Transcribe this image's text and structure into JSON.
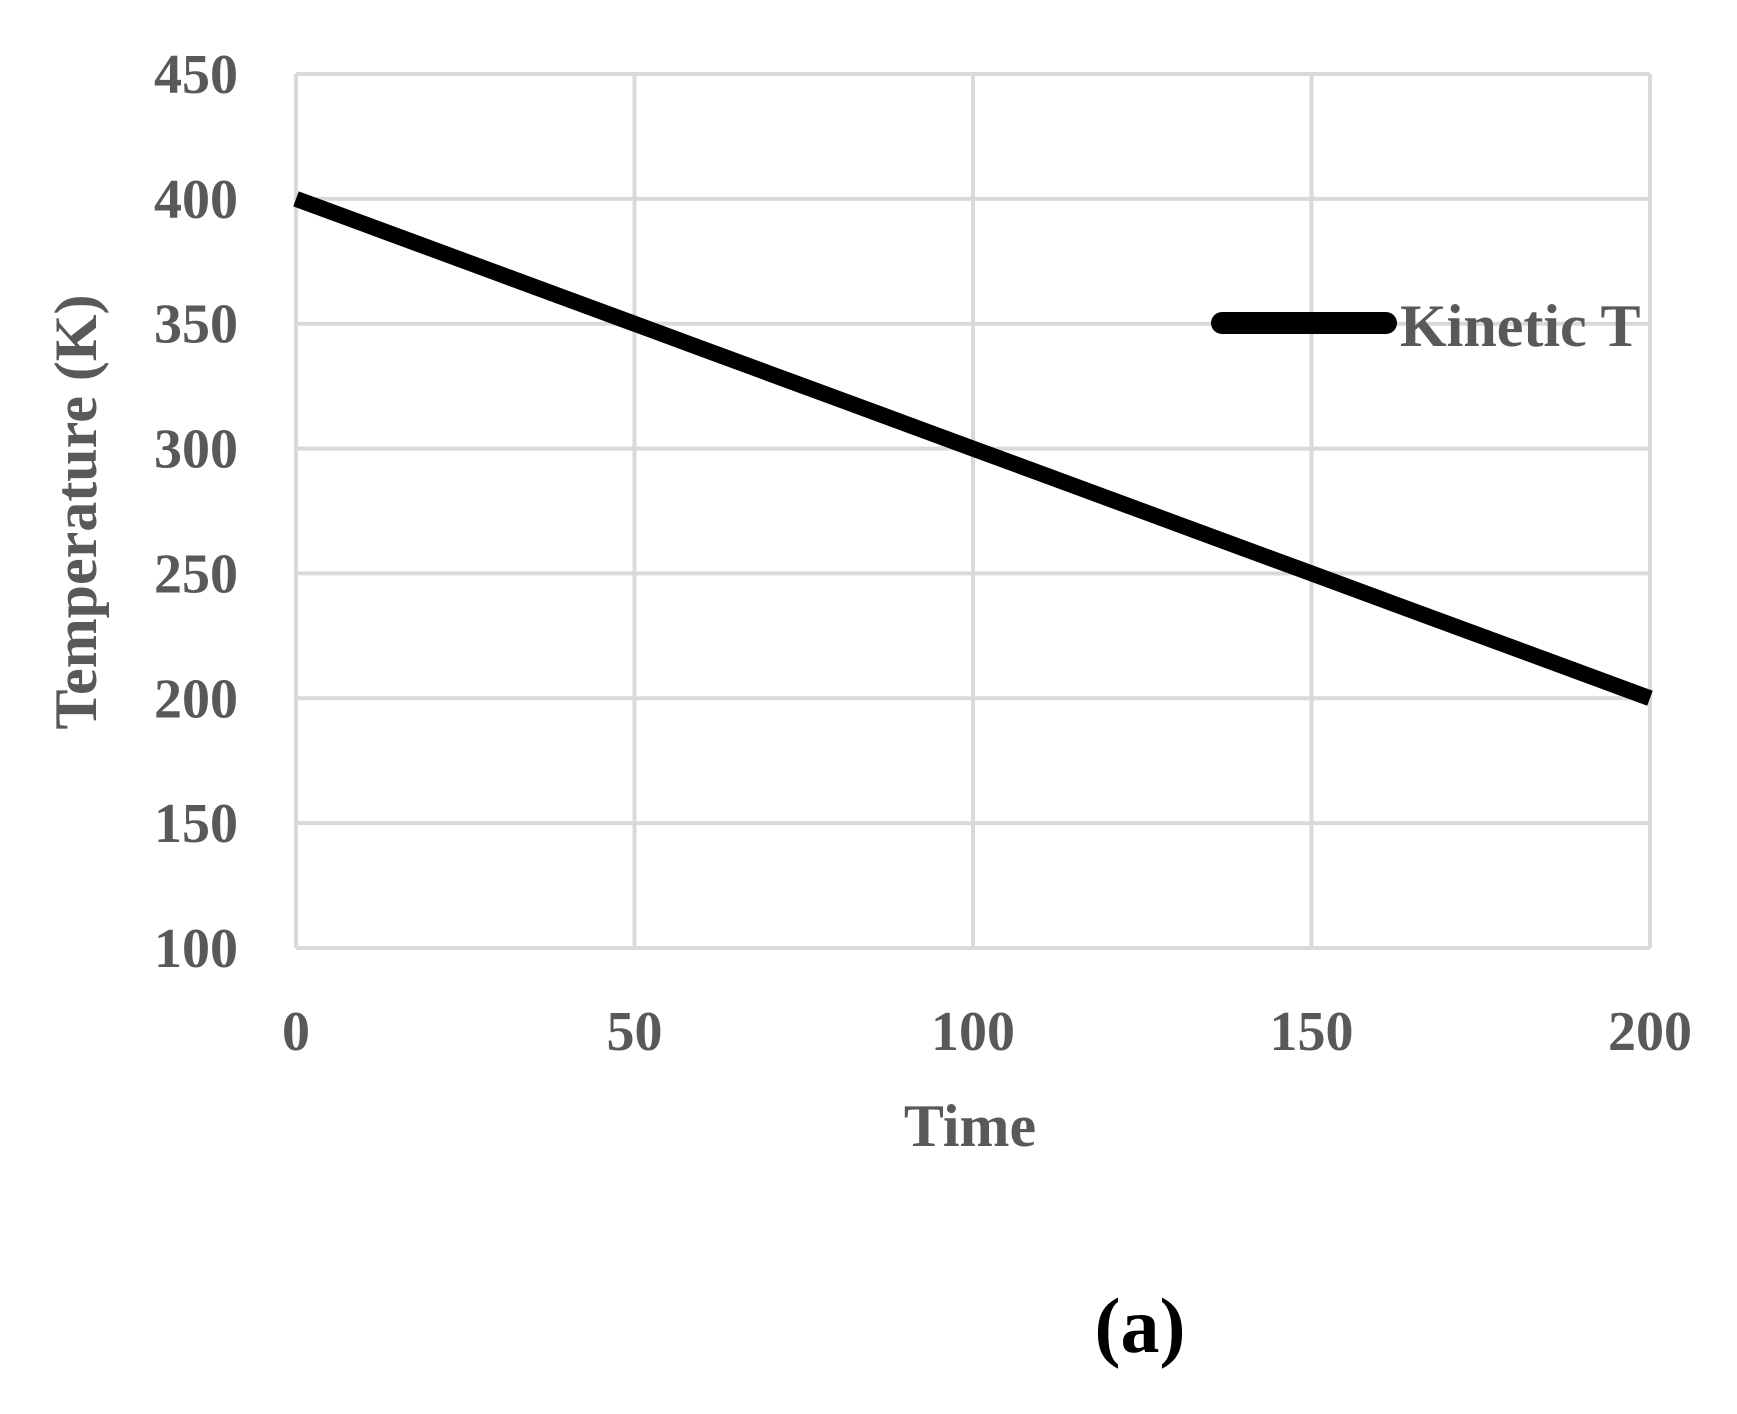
{
  "chart_data": {
    "type": "line",
    "title": "",
    "xlabel": "Time",
    "ylabel": "Temperature (K)",
    "xlim": [
      0,
      200
    ],
    "ylim": [
      100,
      450
    ],
    "x_ticks": [
      "0",
      "50",
      "100",
      "150",
      "200"
    ],
    "y_ticks": [
      "100",
      "150",
      "200",
      "250",
      "300",
      "350",
      "400",
      "450"
    ],
    "grid": true,
    "legend_position": "right",
    "series": [
      {
        "name": "Kinetic T",
        "color": "#000000",
        "x": [
          0,
          10,
          20,
          30,
          40,
          50,
          60,
          70,
          80,
          90,
          100,
          110,
          120,
          130,
          140,
          150,
          160,
          170,
          180,
          190,
          200
        ],
        "y": [
          400,
          390,
          380,
          370,
          360,
          350,
          340,
          330,
          320,
          310,
          300,
          290,
          280,
          270,
          260,
          250,
          240,
          230,
          220,
          210,
          200
        ]
      }
    ]
  },
  "panel_label": "(a)",
  "colors": {
    "grid": "#d9d9d9",
    "text": "#595959",
    "line": "#000000"
  }
}
